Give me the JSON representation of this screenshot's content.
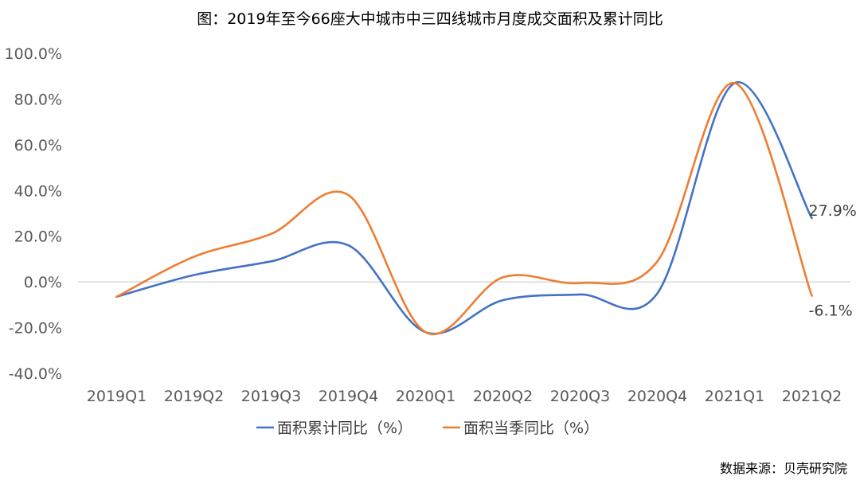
{
  "chart_data": {
    "type": "line",
    "title": "图：2019年至今66座大中城市中三四线城市月度成交面积及累计同比",
    "categories": [
      "2019Q1",
      "2019Q2",
      "2019Q3",
      "2019Q4",
      "2020Q1",
      "2020Q2",
      "2020Q3",
      "2020Q4",
      "2021Q1",
      "2021Q2"
    ],
    "ylim": [
      -40,
      100
    ],
    "yticks": [
      100,
      80,
      60,
      40,
      20,
      0,
      -20,
      -40
    ],
    "ytick_labels": [
      "100.0%",
      "80.0%",
      "60.0%",
      "40.0%",
      "20.0%",
      "0.0%",
      "-20.0%",
      "-40.0%"
    ],
    "series": [
      {
        "name": "面积累计同比（%）",
        "color": "#4472C4",
        "values": [
          -6.5,
          3.0,
          9.0,
          16.0,
          -22.0,
          -8.0,
          -5.5,
          -5.0,
          87.0,
          27.9
        ],
        "end_label": "27.9%"
      },
      {
        "name": "面积当季同比（%）",
        "color": "#ED7D31",
        "values": [
          -6.5,
          11.0,
          21.0,
          38.0,
          -22.0,
          2.0,
          -0.5,
          9.0,
          87.0,
          -6.1
        ],
        "end_label": "-6.1%"
      }
    ],
    "legend_position": "bottom",
    "grid": false,
    "source": "数据来源：贝壳研究院"
  }
}
